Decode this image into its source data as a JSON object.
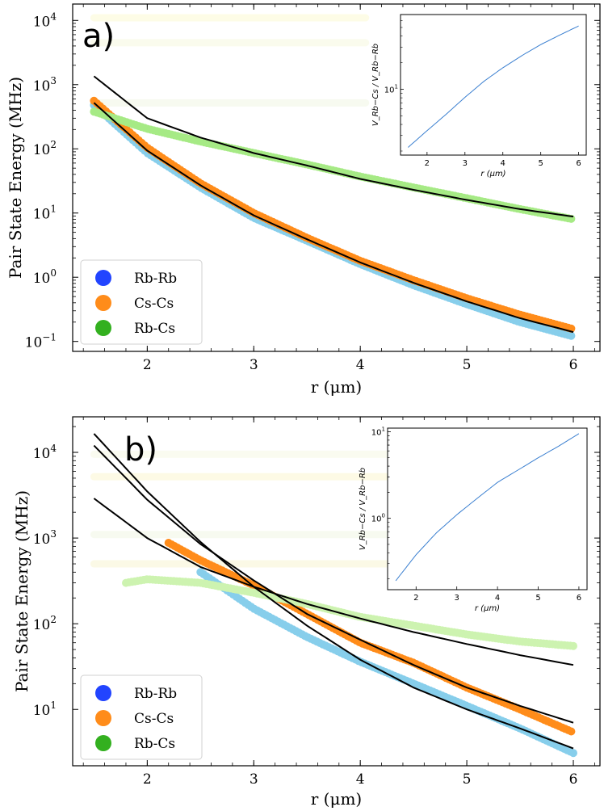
{
  "chart_data": [
    {
      "type": "scatter",
      "panel_label": "a)",
      "xlabel": "r (μm)",
      "ylabel": "Pair State Energy (MHz)",
      "xlim": [
        1.3,
        6.25
      ],
      "ylim": [
        0.07,
        18000
      ],
      "yscale": "log",
      "xticks": [
        2,
        3,
        4,
        5,
        6
      ],
      "yticks": [
        0.1,
        1,
        10,
        100,
        1000,
        10000
      ],
      "ytick_labels": [
        [
          "10",
          "−1"
        ],
        [
          "10",
          "0"
        ],
        [
          "10",
          "1"
        ],
        [
          "10",
          "2"
        ],
        [
          "10",
          "3"
        ],
        [
          "10",
          "4"
        ]
      ],
      "legend": {
        "position": "lower-left",
        "entries": [
          {
            "label": "Rb-Rb",
            "color": "#2244ff"
          },
          {
            "label": "Cs-Cs",
            "color": "#ff8c1a"
          },
          {
            "label": "Rb-Cs",
            "color": "#33b01f"
          }
        ]
      },
      "series": [
        {
          "name": "Rb-Rb",
          "color": "#87ceeb",
          "x": [
            1.5,
            2,
            2.5,
            3,
            3.5,
            4,
            4.5,
            5,
            5.5,
            6
          ],
          "y": [
            480,
            86,
            25,
            8.4,
            3.7,
            1.6,
            0.75,
            0.38,
            0.2,
            0.12
          ]
        },
        {
          "name": "Cs-Cs",
          "color": "#ff8c1a",
          "x": [
            1.5,
            2,
            2.5,
            3,
            3.5,
            4,
            4.5,
            5,
            5.5,
            6
          ],
          "y": [
            560,
            104,
            29,
            10,
            4.1,
            1.8,
            0.9,
            0.47,
            0.26,
            0.155
          ]
        },
        {
          "name": "Rb-Cs",
          "color": "#a6ea85",
          "x": [
            1.5,
            2,
            2.5,
            3,
            3.5,
            4,
            4.5,
            5,
            5.5,
            6
          ],
          "y": [
            380,
            205,
            130,
            86,
            57,
            37,
            25,
            17,
            11.5,
            8
          ]
        }
      ],
      "fits": [
        {
          "x": [
            1.5,
            2,
            2.5,
            3,
            3.5,
            4,
            4.5,
            5,
            5.5,
            6
          ],
          "y": [
            1350,
            300,
            150,
            86,
            55,
            34,
            23,
            16,
            11.5,
            8.8
          ]
        },
        {
          "x": [
            1.5,
            2,
            2.5,
            3,
            3.5,
            4,
            4.5,
            5,
            5.5,
            6
          ],
          "y": [
            520,
            94,
            27,
            9.2,
            3.9,
            1.7,
            0.82,
            0.42,
            0.23,
            0.14
          ]
        }
      ],
      "inset": {
        "xlabel": "r (μm)",
        "ylabel": "V_Rb−Cs / V_Rb−Rb",
        "xlim": [
          1.3,
          6.2
        ],
        "ylim": [
          1.8,
          70
        ],
        "xticks": [
          2,
          3,
          4,
          5,
          6
        ],
        "yticks": [
          10
        ],
        "ytick_labels": [
          [
            "10",
            "1"
          ]
        ],
        "x": [
          1.5,
          2,
          2.5,
          3,
          3.5,
          4,
          4.5,
          5,
          5.5,
          6
        ],
        "y": [
          2.2,
          3.4,
          5.2,
          8.1,
          12.3,
          17.5,
          24,
          32,
          41,
          52
        ]
      }
    },
    {
      "type": "scatter",
      "panel_label": "b)",
      "xlabel": "r (μm)",
      "ylabel": "Pair State Energy (MHz)",
      "xlim": [
        1.3,
        6.25
      ],
      "ylim": [
        2.2,
        26000
      ],
      "yscale": "log",
      "xticks": [
        2,
        3,
        4,
        5,
        6
      ],
      "yticks": [
        10,
        100,
        1000,
        10000
      ],
      "ytick_labels": [
        [
          "10",
          "1"
        ],
        [
          "10",
          "2"
        ],
        [
          "10",
          "3"
        ],
        [
          "10",
          "4"
        ]
      ],
      "legend": {
        "position": "lower-left",
        "entries": [
          {
            "label": "Rb-Rb",
            "color": "#2244ff"
          },
          {
            "label": "Cs-Cs",
            "color": "#ff8c1a"
          },
          {
            "label": "Rb-Cs",
            "color": "#33b01f"
          }
        ]
      },
      "series": [
        {
          "name": "Rb-Rb",
          "color": "#87ceeb",
          "x": [
            2.5,
            3,
            3.5,
            4,
            4.5,
            5,
            5.5,
            6
          ],
          "y": [
            400,
            150,
            70,
            36,
            20,
            11,
            6,
            3.1
          ]
        },
        {
          "name": "Cs-Cs",
          "color": "#ff8c1a",
          "x": [
            2.2,
            2.5,
            3,
            3.5,
            4,
            4.5,
            5,
            5.5,
            6
          ],
          "y": [
            880,
            550,
            280,
            130,
            60,
            35,
            18,
            10,
            5.4
          ]
        },
        {
          "name": "Rb-Cs",
          "color": "#cdf3b0",
          "x": [
            1.8,
            2,
            2.5,
            3,
            3.5,
            4,
            4.5,
            5,
            5.5,
            6
          ],
          "y": [
            300,
            330,
            300,
            230,
            170,
            120,
            95,
            75,
            62,
            55
          ]
        }
      ],
      "fits": [
        {
          "x": [
            1.5,
            2,
            2.5,
            3,
            3.5,
            4,
            4.5,
            5,
            5.5,
            6
          ],
          "y": [
            16500,
            3500,
            900,
            270,
            95,
            38,
            18,
            10,
            6,
            3.5
          ]
        },
        {
          "x": [
            1.5,
            2,
            2.5,
            3,
            3.5,
            4,
            4.5,
            5,
            5.5,
            6
          ],
          "y": [
            12000,
            2800,
            850,
            320,
            130,
            65,
            33,
            18,
            11,
            7
          ]
        },
        {
          "x": [
            1.5,
            2,
            2.5,
            3,
            3.5,
            4,
            4.5,
            5,
            5.5,
            6
          ],
          "y": [
            2900,
            1000,
            460,
            270,
            170,
            115,
            80,
            58,
            43,
            33
          ]
        }
      ],
      "inset": {
        "xlabel": "r (μm)",
        "ylabel": "V_Rb−Cs / V_Rb−Rb",
        "xlim": [
          1.3,
          6.2
        ],
        "ylim": [
          0.15,
          11
        ],
        "xticks": [
          2,
          3,
          4,
          5,
          6
        ],
        "yticks": [
          1,
          10
        ],
        "ytick_labels": [
          [
            "10",
            "0"
          ],
          [
            "10",
            "1"
          ]
        ],
        "x": [
          1.5,
          2,
          2.5,
          3,
          3.5,
          4,
          4.5,
          5,
          5.5,
          6
        ],
        "y": [
          0.19,
          0.38,
          0.68,
          1.1,
          1.7,
          2.6,
          3.6,
          5.0,
          6.8,
          9.5
        ]
      }
    }
  ]
}
